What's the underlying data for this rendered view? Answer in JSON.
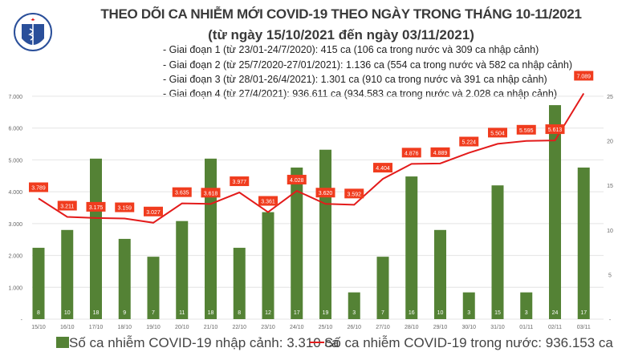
{
  "header": {
    "title": "THEO DÕI CA NHIỄM MỚI COVID-19 THEO NGÀY TRONG THÁNG 10-11/2021",
    "subtitle": "(từ ngày 15/10/2021 đến ngày 03/11/2021)",
    "phases": [
      "- Giai đoạn 1 (từ 23/01-24/7/2020): 415 ca (106 ca trong nước và 309 ca nhập cảnh)",
      "- Giai đoạn 2 (từ 25/7/2020-27/01/2021): 1.136 ca (554 ca trong nước và 582 ca nhập cảnh)",
      "- Giai đoạn 3 (từ 28/01-26/4/2021): 1.301 ca (910 ca trong nước và 391 ca nhập cảnh)",
      "- Giai đoạn 4 (từ 27/4/2021): 936.611 ca (934.583 ca trong nước và 2.028 ca nhập cảnh)"
    ],
    "logo_text": "BỘ Y TẾ · MINISTRY OF HEALTH"
  },
  "chart_data": {
    "type": "bar+line",
    "categories": [
      "15/10",
      "16/10",
      "17/10",
      "18/10",
      "19/10",
      "20/10",
      "21/10",
      "22/10",
      "23/10",
      "24/10",
      "25/10",
      "26/10",
      "27/10",
      "28/10",
      "29/10",
      "30/10",
      "31/10",
      "01/11",
      "02/11",
      "03/11"
    ],
    "series": [
      {
        "name": "Số ca nhiễm COVID-19 nhập cảnh: 3.310 ca",
        "type": "bar",
        "axis": "right",
        "color": "#548235",
        "values": [
          8,
          10,
          18,
          9,
          7,
          11,
          18,
          8,
          12,
          17,
          19,
          3,
          7,
          16,
          10,
          3,
          15,
          3,
          24,
          17
        ]
      },
      {
        "name": "Số ca nhiễm COVID-19 trong nước: 936.153 ca",
        "type": "line",
        "axis": "left",
        "color": "#e31b1b",
        "values": [
          3789,
          3211,
          3175,
          3159,
          3027,
          3635,
          3618,
          3977,
          3361,
          4028,
          3620,
          3592,
          4404,
          4876,
          4889,
          5224,
          5504,
          5595,
          5613,
          7089
        ],
        "labels": [
          "3.789",
          "3.211",
          "3.175",
          "3.159",
          "3.027",
          "3.635",
          "3.618",
          "3.977",
          "3.361",
          "4.028",
          "3.620",
          "3.592",
          "4.404",
          "4.876",
          "4.889",
          "5.224",
          "5.504",
          "5.595",
          "5.613",
          "7.089"
        ]
      }
    ],
    "left_axis": {
      "range": [
        0,
        7000
      ],
      "ticks": [
        "-",
        "1.000",
        "2.000",
        "3.000",
        "4.000",
        "5.000",
        "6.000",
        "7.000"
      ]
    },
    "right_axis": {
      "range": [
        0,
        25
      ],
      "ticks": [
        "-",
        "5",
        "10",
        "15",
        "20",
        "25"
      ]
    },
    "grid": true,
    "legend": "bottom"
  }
}
